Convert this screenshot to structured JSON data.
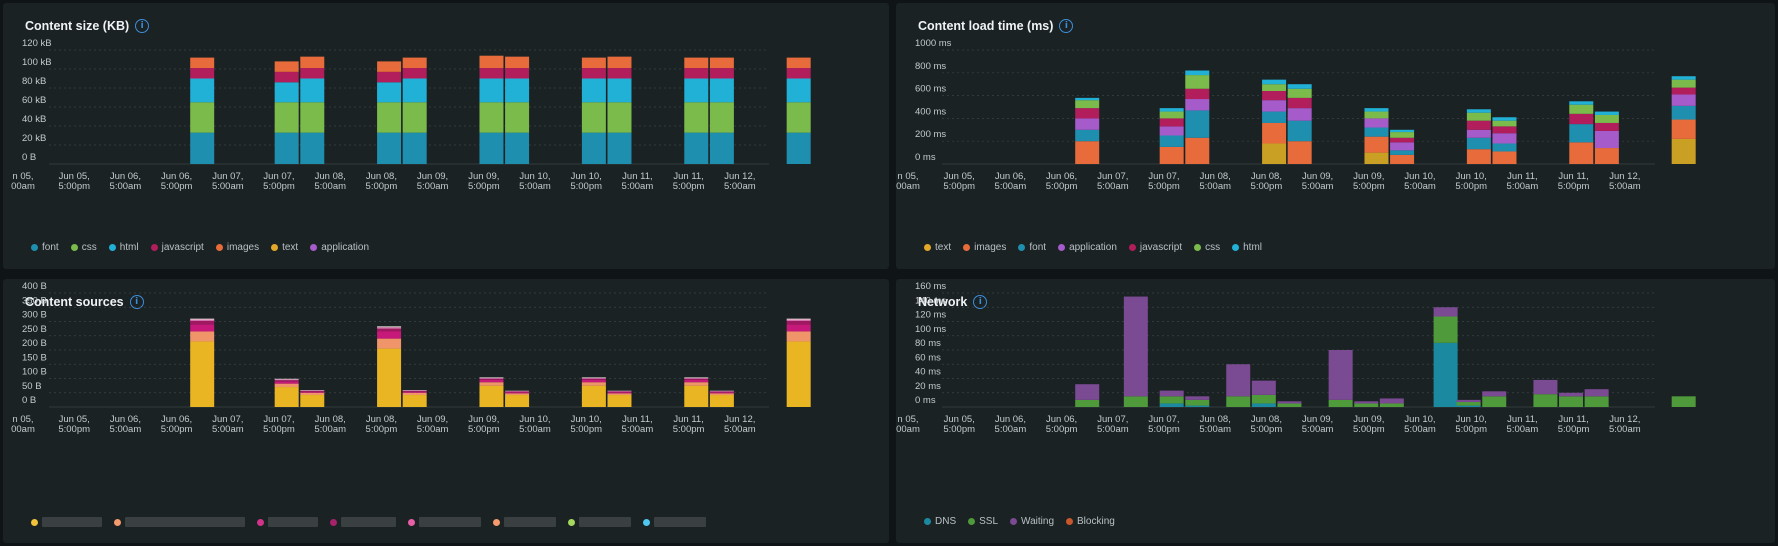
{
  "panels": [
    {
      "title": "Content size (KB)",
      "chart_data": {
        "type": "bar",
        "stacked": true,
        "y_ticks": [
          "0 B",
          "20 kB",
          "40 kB",
          "60 kB",
          "80 kB",
          "100 kB",
          "120 kB"
        ],
        "ylim": [
          0,
          120
        ],
        "x_ticks": [
          [
            "n 05,",
            "00am"
          ],
          [
            "Jun 05,",
            "5:00pm"
          ],
          [
            "Jun 06,",
            "5:00am"
          ],
          [
            "Jun 06,",
            "5:00pm"
          ],
          [
            "Jun 07,",
            "5:00am"
          ],
          [
            "Jun 07,",
            "5:00pm"
          ],
          [
            "Jun 08,",
            "5:00am"
          ],
          [
            "Jun 08,",
            "5:00pm"
          ],
          [
            "Jun 09,",
            "5:00am"
          ],
          [
            "Jun 09,",
            "5:00pm"
          ],
          [
            "Jun 10,",
            "5:00am"
          ],
          [
            "Jun 10,",
            "5:00pm"
          ],
          [
            "Jun 11,",
            "5:00am"
          ],
          [
            "Jun 11,",
            "5:00pm"
          ],
          [
            "Jun 12,",
            "5:00am"
          ]
        ],
        "bar_slots": [
          6.5,
          8.15,
          8.65,
          10.15,
          10.65,
          12.15,
          12.65,
          14.15,
          14.65,
          16.15,
          16.65,
          18.15
        ],
        "series": [
          {
            "name": "font",
            "color": "#1f8fb0",
            "values": [
              33,
              33,
              33,
              33,
              33,
              33,
              33,
              33,
              33,
              33,
              33,
              33
            ]
          },
          {
            "name": "css",
            "color": "#7bbb4c",
            "values": [
              32,
              32,
              32,
              32,
              32,
              32,
              32,
              32,
              32,
              32,
              32,
              32
            ]
          },
          {
            "name": "html",
            "color": "#22b1d6",
            "values": [
              25,
              21,
              25,
              21,
              25,
              25,
              25,
              25,
              25,
              25,
              25,
              25
            ]
          },
          {
            "name": "javascript",
            "color": "#b21d5c",
            "values": [
              11,
              11,
              11,
              11,
              11,
              11,
              11,
              11,
              11,
              11,
              11,
              11
            ]
          },
          {
            "name": "images",
            "color": "#e76b3b",
            "values": [
              11,
              11,
              12,
              11,
              11,
              13,
              12,
              11,
              12,
              11,
              11,
              11
            ]
          },
          {
            "name": "text",
            "color": "#e3a72a",
            "values": [
              0,
              0,
              0,
              0,
              0,
              0,
              0,
              0,
              0,
              0,
              0,
              0
            ]
          },
          {
            "name": "application",
            "color": "#a55bc9",
            "values": [
              0,
              0,
              0,
              0,
              0,
              0,
              0,
              0,
              0,
              0,
              0,
              0
            ]
          }
        ]
      },
      "legend": [
        {
          "label": "font",
          "color": "#1f8fb0"
        },
        {
          "label": "css",
          "color": "#7bbb4c"
        },
        {
          "label": "html",
          "color": "#22b1d6"
        },
        {
          "label": "javascript",
          "color": "#b21d5c"
        },
        {
          "label": "images",
          "color": "#e76b3b"
        },
        {
          "label": "text",
          "color": "#e3a72a"
        },
        {
          "label": "application",
          "color": "#a55bc9"
        }
      ]
    },
    {
      "title": "Content load time (ms)",
      "chart_data": {
        "type": "bar",
        "stacked": true,
        "y_ticks": [
          "0 ms",
          "200 ms",
          "400 ms",
          "600 ms",
          "800 ms",
          "1000 ms"
        ],
        "ylim": [
          0,
          1000
        ],
        "x_ticks": [
          [
            "n 05,",
            "00am"
          ],
          [
            "Jun 05,",
            "5:00pm"
          ],
          [
            "Jun 06,",
            "5:00am"
          ],
          [
            "Jun 06,",
            "5:00pm"
          ],
          [
            "Jun 07,",
            "5:00am"
          ],
          [
            "Jun 07,",
            "5:00pm"
          ],
          [
            "Jun 08,",
            "5:00am"
          ],
          [
            "Jun 08,",
            "5:00pm"
          ],
          [
            "Jun 09,",
            "5:00am"
          ],
          [
            "Jun 09,",
            "5:00pm"
          ],
          [
            "Jun 10,",
            "5:00am"
          ],
          [
            "Jun 10,",
            "5:00pm"
          ],
          [
            "Jun 11,",
            "5:00am"
          ],
          [
            "Jun 11,",
            "5:00pm"
          ],
          [
            "Jun 12,",
            "5:00am"
          ]
        ],
        "bar_slots": [
          6.5,
          8.15,
          8.65,
          10.15,
          10.65,
          12.15,
          12.65,
          14.15,
          14.65,
          16.15,
          16.65,
          18.15
        ],
        "series": [
          {
            "name": "text",
            "color": "#c9a024",
            "values": [
              0,
              0,
              0,
              180,
              0,
              100,
              0,
              0,
              0,
              0,
              0,
              220
            ]
          },
          {
            "name": "images",
            "color": "#e76b3b",
            "values": [
              200,
              150,
              230,
              180,
              200,
              140,
              80,
              130,
              110,
              190,
              140,
              170
            ]
          },
          {
            "name": "font",
            "color": "#1f8fb0",
            "values": [
              100,
              100,
              240,
              100,
              180,
              80,
              40,
              100,
              70,
              160,
              0,
              120
            ]
          },
          {
            "name": "application",
            "color": "#a55bc9",
            "values": [
              100,
              80,
              100,
              100,
              110,
              80,
              70,
              70,
              90,
              0,
              150,
              100
            ]
          },
          {
            "name": "javascript",
            "color": "#b21d5c",
            "values": [
              90,
              70,
              90,
              80,
              90,
              0,
              40,
              80,
              60,
              90,
              70,
              60
            ]
          },
          {
            "name": "css",
            "color": "#7bbb4c",
            "values": [
              70,
              60,
              120,
              60,
              80,
              60,
              50,
              70,
              50,
              80,
              70,
              70
            ]
          },
          {
            "name": "html",
            "color": "#22b1d6",
            "values": [
              20,
              30,
              40,
              40,
              40,
              30,
              20,
              30,
              30,
              30,
              30,
              30
            ]
          }
        ]
      },
      "legend": [
        {
          "label": "text",
          "color": "#e3a72a"
        },
        {
          "label": "images",
          "color": "#e76b3b"
        },
        {
          "label": "font",
          "color": "#1f8fb0"
        },
        {
          "label": "application",
          "color": "#a55bc9"
        },
        {
          "label": "javascript",
          "color": "#b21d5c"
        },
        {
          "label": "css",
          "color": "#7bbb4c"
        },
        {
          "label": "html",
          "color": "#22b1d6"
        }
      ]
    },
    {
      "title": "Content sources",
      "chart_data": {
        "type": "bar",
        "stacked": true,
        "y_ticks": [
          "0 B",
          "50 B",
          "100 B",
          "150 B",
          "200 B",
          "250 B",
          "300 B",
          "350 B",
          "400 B"
        ],
        "ylim": [
          0,
          400
        ],
        "x_ticks": [
          [
            "n 05,",
            "00am"
          ],
          [
            "Jun 05,",
            "5:00pm"
          ],
          [
            "Jun 06,",
            "5:00am"
          ],
          [
            "Jun 06,",
            "5:00pm"
          ],
          [
            "Jun 07,",
            "5:00am"
          ],
          [
            "Jun 07,",
            "5:00pm"
          ],
          [
            "Jun 08,",
            "5:00am"
          ],
          [
            "Jun 08,",
            "5:00pm"
          ],
          [
            "Jun 09,",
            "5:00am"
          ],
          [
            "Jun 09,",
            "5:00pm"
          ],
          [
            "Jun 10,",
            "5:00am"
          ],
          [
            "Jun 10,",
            "5:00pm"
          ],
          [
            "Jun 11,",
            "5:00am"
          ],
          [
            "Jun 11,",
            "5:00pm"
          ],
          [
            "Jun 12,",
            "5:00am"
          ]
        ],
        "bar_slots": [
          6.5,
          8.15,
          8.65,
          10.15,
          10.65,
          12.15,
          12.65,
          14.15,
          14.65,
          16.15,
          16.65,
          18.15
        ],
        "series": [
          {
            "color": "#eab523",
            "values": [
              230,
              70,
              42,
              205,
              42,
              75,
              42,
              75,
              42,
              75,
              42,
              230
            ]
          },
          {
            "color": "#f0956a",
            "values": [
              35,
              12,
              8,
              35,
              8,
              12,
              6,
              12,
              6,
              12,
              6,
              35
            ]
          },
          {
            "color": "#c6197a",
            "values": [
              25,
              8,
              4,
              25,
              4,
              8,
              4,
              8,
              4,
              8,
              4,
              25
            ]
          },
          {
            "color": "#a01860",
            "values": [
              12,
              4,
              2,
              10,
              2,
              4,
              2,
              4,
              2,
              4,
              2,
              12
            ]
          },
          {
            "color": "#e07ab8",
            "values": [
              5,
              3,
              2,
              5,
              2,
              3,
              2,
              3,
              2,
              3,
              2,
              5
            ]
          },
          {
            "color": "#e8e0d8",
            "values": [
              3,
              2,
              1,
              3,
              1,
              2,
              1,
              2,
              1,
              2,
              1,
              3
            ]
          }
        ]
      },
      "legend": [
        {
          "color": "#f2c23a",
          "width": 60
        },
        {
          "color": "#f49a6c",
          "width": 120
        },
        {
          "color": "#d0338a",
          "width": 50
        },
        {
          "color": "#a6226a",
          "width": 55
        },
        {
          "color": "#e85fa8",
          "width": 62
        },
        {
          "color": "#f49a6c",
          "width": 52
        },
        {
          "color": "#a4d75e",
          "width": 52
        },
        {
          "color": "#4fc6ee",
          "width": 52
        }
      ]
    },
    {
      "title": "Network",
      "chart_data": {
        "type": "bar",
        "stacked": true,
        "y_ticks": [
          "0 ms",
          "20 ms",
          "40 ms",
          "60 ms",
          "80 ms",
          "100 ms",
          "120 ms",
          "140 ms",
          "160 ms"
        ],
        "ylim": [
          0,
          160
        ],
        "x_ticks": [
          [
            "n 05,",
            "00am"
          ],
          [
            "Jun 05,",
            "5:00pm"
          ],
          [
            "Jun 06,",
            "5:00am"
          ],
          [
            "Jun 06,",
            "5:00pm"
          ],
          [
            "Jun 07,",
            "5:00am"
          ],
          [
            "Jun 07,",
            "5:00pm"
          ],
          [
            "Jun 08,",
            "5:00am"
          ],
          [
            "Jun 08,",
            "5:00pm"
          ],
          [
            "Jun 09,",
            "5:00am"
          ],
          [
            "Jun 09,",
            "5:00pm"
          ],
          [
            "Jun 10,",
            "5:00am"
          ],
          [
            "Jun 10,",
            "5:00pm"
          ],
          [
            "Jun 11,",
            "5:00am"
          ],
          [
            "Jun 11,",
            "5:00pm"
          ],
          [
            "Jun 12,",
            "5:00am"
          ]
        ],
        "bar_slots": [
          6.5,
          7.45,
          8.15,
          8.65,
          9.45,
          9.95,
          10.45,
          11.45,
          11.95,
          12.45,
          13.5,
          13.95,
          14.45,
          15.45,
          15.95,
          16.45,
          18.15
        ],
        "series": [
          {
            "name": "DNS",
            "color": "#1b8aa0",
            "values": [
              0,
              0,
              5,
              2,
              0,
              5,
              0,
              0,
              0,
              0,
              90,
              2,
              0,
              0,
              0,
              0,
              0
            ]
          },
          {
            "name": "SSL",
            "color": "#4f9a3a",
            "values": [
              10,
              15,
              10,
              8,
              15,
              12,
              5,
              10,
              5,
              5,
              37,
              5,
              15,
              18,
              15,
              15,
              15
            ]
          },
          {
            "name": "Waiting",
            "color": "#7a4a93",
            "values": [
              22,
              140,
              8,
              5,
              45,
              20,
              3,
              70,
              3,
              7,
              13,
              3,
              7,
              20,
              5,
              10,
              0
            ]
          },
          {
            "name": "Blocking",
            "color": "#c8572c",
            "values": [
              0,
              0,
              0,
              0,
              0,
              0,
              0,
              0,
              0,
              0,
              0,
              0,
              0,
              0,
              0,
              0,
              0
            ]
          }
        ]
      },
      "legend": [
        {
          "label": "DNS",
          "color": "#1b8aa0"
        },
        {
          "label": "SSL",
          "color": "#4f9a3a"
        },
        {
          "label": "Waiting",
          "color": "#7a4a93"
        },
        {
          "label": "Blocking",
          "color": "#c8572c"
        }
      ]
    }
  ]
}
